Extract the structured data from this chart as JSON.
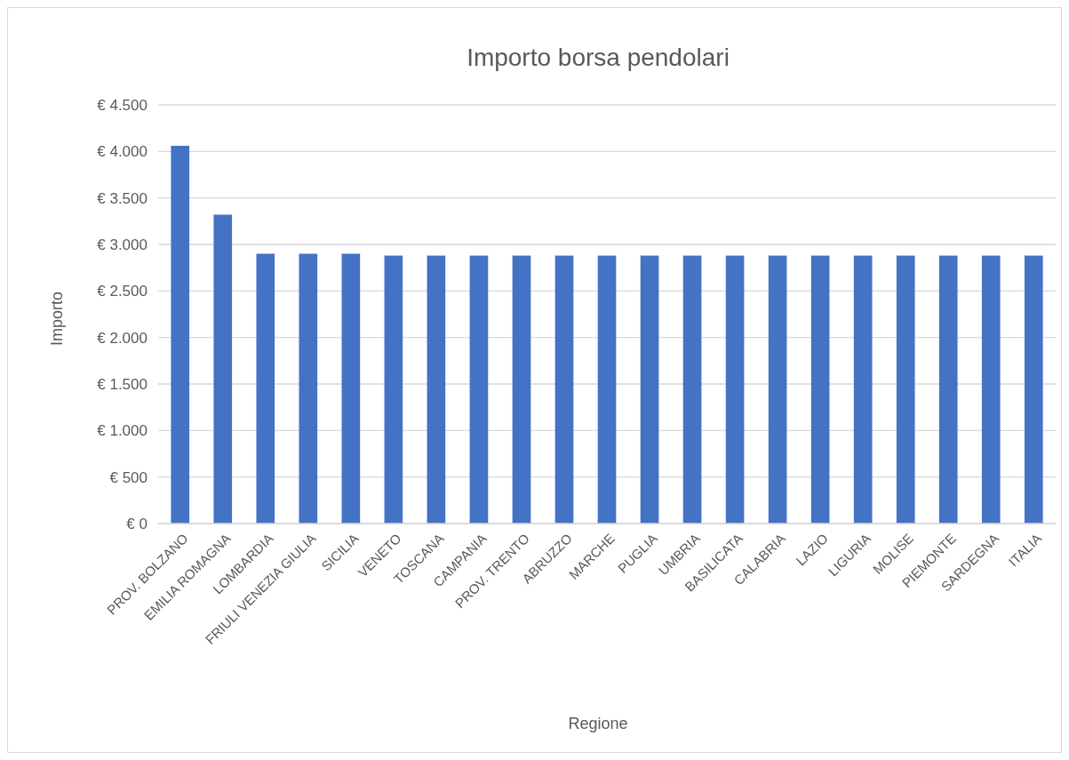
{
  "chart_data": {
    "type": "bar",
    "title": "Importo borsa pendolari",
    "xlabel": "Regione",
    "ylabel": "Importo",
    "categories": [
      "PROV. BOLZANO",
      "EMILIA ROMAGNA",
      "LOMBARDIA",
      "FRIULI VENEZIA GIULIA",
      "SICILIA",
      "VENETO",
      "TOSCANA",
      "CAMPANIA",
      "PROV. TRENTO",
      "ABRUZZO",
      "MARCHE",
      "PUGLIA",
      "UMBRIA",
      "BASILICATA",
      "CALABRIA",
      "LAZIO",
      "LIGURIA",
      "MOLISE",
      "PIEMONTE",
      "SARDEGNA",
      "ITALIA"
    ],
    "values": [
      4060,
      3320,
      2900,
      2900,
      2900,
      2880,
      2880,
      2880,
      2880,
      2880,
      2880,
      2880,
      2880,
      2880,
      2880,
      2880,
      2880,
      2880,
      2880,
      2880,
      2880
    ],
    "color": "#4472c4",
    "ylim": [
      0,
      4500
    ],
    "yticks": [
      {
        "value": 0,
        "label": "€ 0"
      },
      {
        "value": 500,
        "label": "€ 500"
      },
      {
        "value": 1000,
        "label": "€ 1.000"
      },
      {
        "value": 1500,
        "label": "€ 1.500"
      },
      {
        "value": 2000,
        "label": "€ 2.000"
      },
      {
        "value": 2500,
        "label": "€ 2.500"
      },
      {
        "value": 3000,
        "label": "€ 3.000"
      },
      {
        "value": 3500,
        "label": "€ 3.500"
      },
      {
        "value": 4000,
        "label": "€ 4.000"
      },
      {
        "value": 4500,
        "label": "€ 4.500"
      }
    ],
    "grid": "y"
  }
}
